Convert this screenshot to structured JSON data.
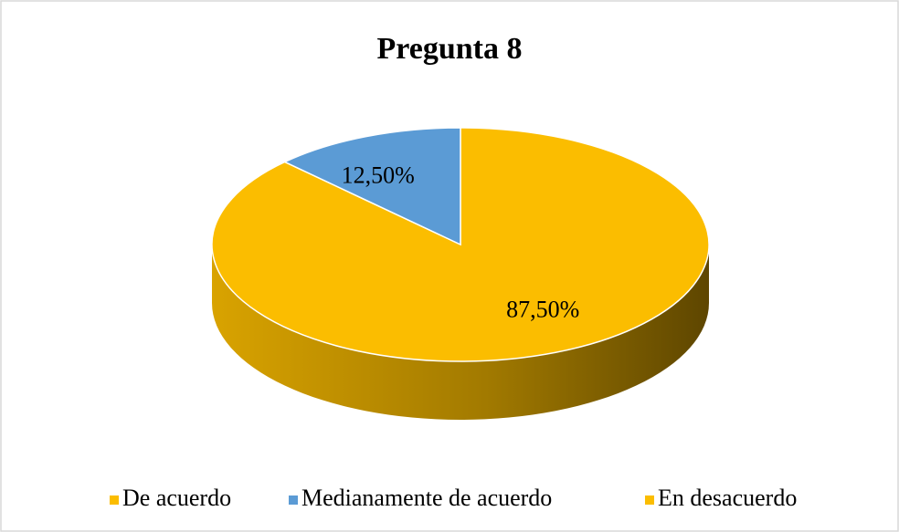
{
  "chart_data": {
    "type": "pie",
    "title": "Pregunta 8",
    "categories": [
      "De acuerdo",
      "Medianamente de acuerdo",
      "En desacuerdo"
    ],
    "values": [
      87.5,
      12.5,
      0
    ],
    "value_labels": [
      "87,50%",
      "12,50%",
      null
    ],
    "colors": [
      "#fbbd00",
      "#5b9bd5",
      "#fbbd00"
    ],
    "legend": "bottom"
  }
}
